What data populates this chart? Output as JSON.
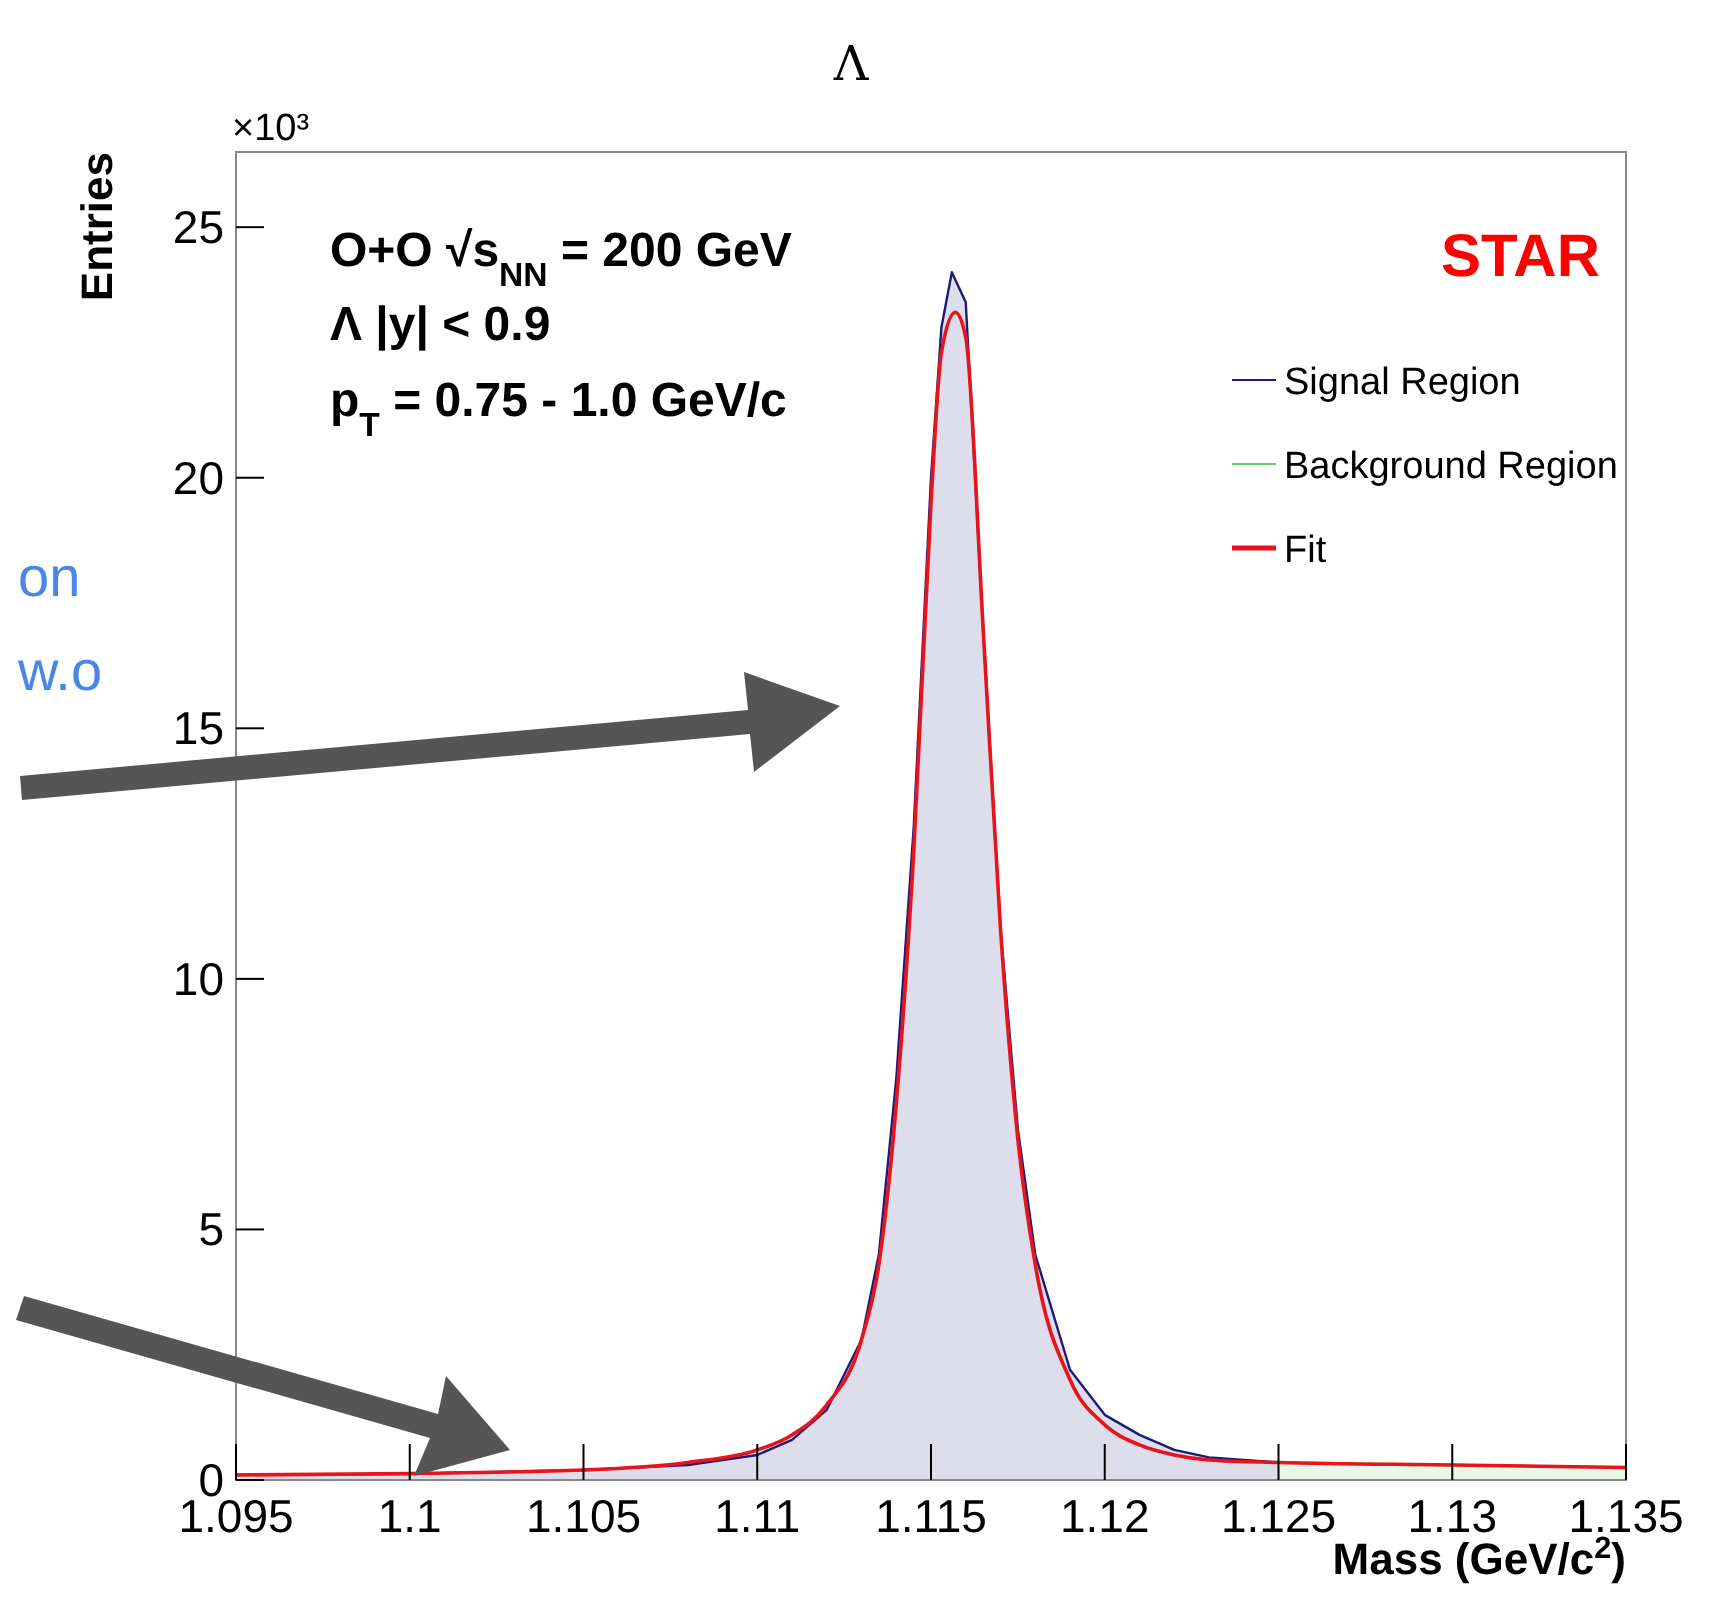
{
  "chart_data": {
    "type": "area",
    "title": "Λ",
    "xlabel": "Mass (GeV/c$^{2}$)",
    "ylabel": "Entries",
    "xlim": [
      1.095,
      1.135
    ],
    "xticks": [
      1.095,
      1.1,
      1.105,
      1.11,
      1.115,
      1.12,
      1.125,
      1.13,
      1.135
    ],
    "ylim": [
      0,
      26.5
    ],
    "yticks": [
      0,
      5,
      10,
      15,
      20,
      25
    ],
    "series": [
      {
        "name": "Signal Region",
        "color": "#1c1c78",
        "x": [
          1.095,
          1.1,
          1.105,
          1.108,
          1.11,
          1.111,
          1.112,
          1.113,
          1.1135,
          1.114,
          1.1145,
          1.115,
          1.1153,
          1.1156,
          1.116,
          1.1165,
          1.117,
          1.1175,
          1.118,
          1.119,
          1.12,
          1.121,
          1.122,
          1.123,
          1.125
        ],
        "values": [
          0.1,
          0.12,
          0.2,
          0.3,
          0.5,
          0.8,
          1.4,
          2.8,
          4.5,
          8,
          13,
          20,
          23,
          24.1,
          23.5,
          17,
          11,
          7,
          4.5,
          2.2,
          1.3,
          0.9,
          0.6,
          0.45,
          0.35
        ]
      },
      {
        "name": "Background Region",
        "color": "#66cc66",
        "x": [
          1.125,
          1.13,
          1.135
        ],
        "values": [
          0.35,
          0.3,
          0.25
        ]
      },
      {
        "name": "Fit",
        "type": "line",
        "color": "#e8141c",
        "x": [
          1.095,
          1.1,
          1.105,
          1.108,
          1.11,
          1.111,
          1.112,
          1.113,
          1.1135,
          1.114,
          1.1145,
          1.115,
          1.1153,
          1.1157,
          1.116,
          1.1165,
          1.117,
          1.1175,
          1.118,
          1.119,
          1.12,
          1.121,
          1.122,
          1.123,
          1.125,
          1.13,
          1.135
        ],
        "values": [
          0.1,
          0.13,
          0.2,
          0.35,
          0.6,
          0.9,
          1.5,
          2.8,
          4.3,
          7.5,
          12.5,
          19.5,
          22.5,
          23.3,
          22.8,
          17,
          11,
          6.8,
          4.3,
          2,
          1.1,
          0.7,
          0.5,
          0.4,
          0.35,
          0.3,
          0.25
        ]
      }
    ],
    "legend": "top right",
    "grid": false,
    "marker": "none",
    "line_style": "solid",
    "annotations": [
      "×10³",
      "O+O  √s$_{NN}$ = 200 GeV",
      "Λ |y| < 0.9",
      "p$_{T}$ = 0.75 - 1.0 GeV/c",
      "STAR",
      "on",
      "w.o"
    ]
  }
}
